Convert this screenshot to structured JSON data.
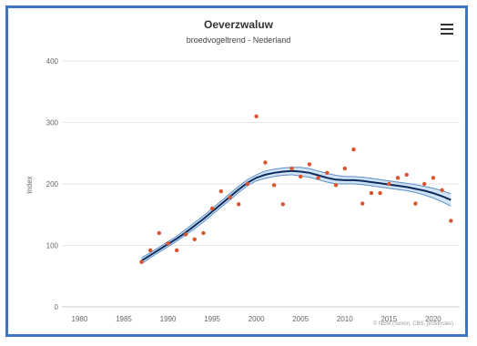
{
  "chart_data": {
    "type": "line",
    "title": "Oeverzwaluw",
    "subtitle": "broedvogeltrend - Nederland",
    "ylabel": "index",
    "xlabel": "",
    "xlim": [
      1978,
      2023
    ],
    "ylim": [
      0,
      400
    ],
    "x_ticks": [
      "1980",
      "1985",
      "1990",
      "1995",
      "2000",
      "2005",
      "2010",
      "2015",
      "2020"
    ],
    "y_ticks": [
      "0",
      "100",
      "200",
      "300",
      "400"
    ],
    "grid": true,
    "legend": "none",
    "credits": "© NEM (Sovon, CBS, provincies)",
    "series": [
      {
        "kind": "trend",
        "x": [
          1987,
          1988,
          1989,
          1990,
          1991,
          1992,
          1993,
          1994,
          1995,
          1996,
          1997,
          1998,
          1999,
          2000,
          2001,
          2002,
          2003,
          2004,
          2005,
          2006,
          2007,
          2008,
          2009,
          2010,
          2011,
          2012,
          2013,
          2014,
          2015,
          2016,
          2017,
          2018,
          2019,
          2020,
          2021,
          2022
        ],
        "y": [
          75,
          84,
          93,
          102,
          111,
          121,
          132,
          143,
          155,
          167,
          179,
          191,
          202,
          210,
          215,
          218,
          220,
          221,
          220,
          218,
          214,
          210,
          207,
          206,
          206,
          205,
          203,
          201,
          199,
          197,
          195,
          192,
          189,
          185,
          180,
          174
        ],
        "upper": [
          80,
          88,
          97,
          106,
          115,
          126,
          137,
          148,
          160,
          172,
          184,
          196,
          207,
          215,
          221,
          224,
          226,
          227,
          227,
          225,
          221,
          217,
          214,
          212,
          212,
          211,
          209,
          207,
          205,
          203,
          201,
          199,
          196,
          193,
          189,
          184
        ],
        "lower": [
          70,
          80,
          89,
          98,
          107,
          117,
          127,
          138,
          150,
          162,
          174,
          186,
          197,
          205,
          209,
          212,
          214,
          215,
          213,
          211,
          207,
          203,
          200,
          200,
          200,
          199,
          197,
          195,
          193,
          191,
          189,
          186,
          182,
          177,
          171,
          164
        ]
      },
      {
        "kind": "observed",
        "x": [
          1987,
          1988,
          1989,
          1990,
          1991,
          1992,
          1993,
          1994,
          1995,
          1996,
          1997,
          1998,
          1999,
          2000,
          2001,
          2002,
          2003,
          2004,
          2005,
          2006,
          2007,
          2008,
          2009,
          2010,
          2011,
          2012,
          2013,
          2014,
          2015,
          2016,
          2017,
          2018,
          2019,
          2020,
          2021,
          2022
        ],
        "y": [
          73,
          92,
          120,
          103,
          92,
          118,
          110,
          120,
          160,
          188,
          178,
          167,
          200,
          310,
          235,
          198,
          167,
          225,
          212,
          232,
          210,
          218,
          198,
          225,
          256,
          168,
          185,
          185,
          200,
          210,
          215,
          168,
          200,
          210,
          190,
          140
        ]
      }
    ],
    "colors": {
      "trend_line": "#0d2c5e",
      "confidence_band": "#7fb0e0",
      "observed_points": "#d9542f",
      "frame": "#3f73c1",
      "grid": "#e6e6e6"
    }
  },
  "header": {
    "menu_icon": "hamburger-menu-icon"
  }
}
